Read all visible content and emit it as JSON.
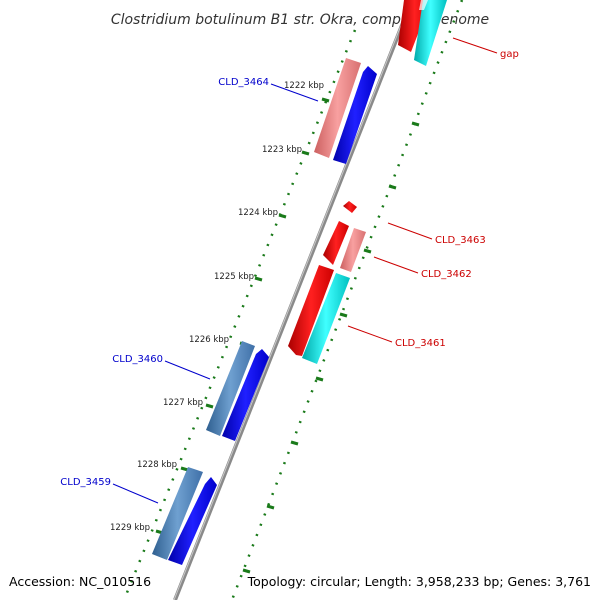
{
  "title": "Clostridium botulinum B1 str. Okra, complete genome",
  "footer": {
    "accession": "Accession: NC_010516",
    "info": "Topology: circular; Length: 3,958,233 bp; Genes: 3,761"
  },
  "ticks": [
    "1222 kbp",
    "1223 kbp",
    "1224 kbp",
    "1225 kbp",
    "1226 kbp",
    "1227 kbp",
    "1228 kbp",
    "1229 kbp"
  ],
  "genes": {
    "left": [
      {
        "name": "CLD_3464",
        "color": "#0000cc"
      },
      {
        "name": "CLD_3460",
        "color": "#0000cc"
      },
      {
        "name": "CLD_3459",
        "color": "#0000cc"
      }
    ],
    "right": [
      {
        "name": "gap",
        "color": "#cc0000"
      },
      {
        "name": "CLD_3463",
        "color": "#cc0000"
      },
      {
        "name": "CLD_3462",
        "color": "#cc0000"
      },
      {
        "name": "CLD_3461",
        "color": "#cc0000"
      }
    ]
  },
  "colors": {
    "forward_cds": "#ee0000",
    "forward_rna": "#00dddd",
    "reverse_cds": "#0000ee",
    "reverse_pale": "#ee8080",
    "reverse_steel": "#4a7fb5",
    "backbone": "#808080",
    "dots": "#1a7a1a"
  }
}
